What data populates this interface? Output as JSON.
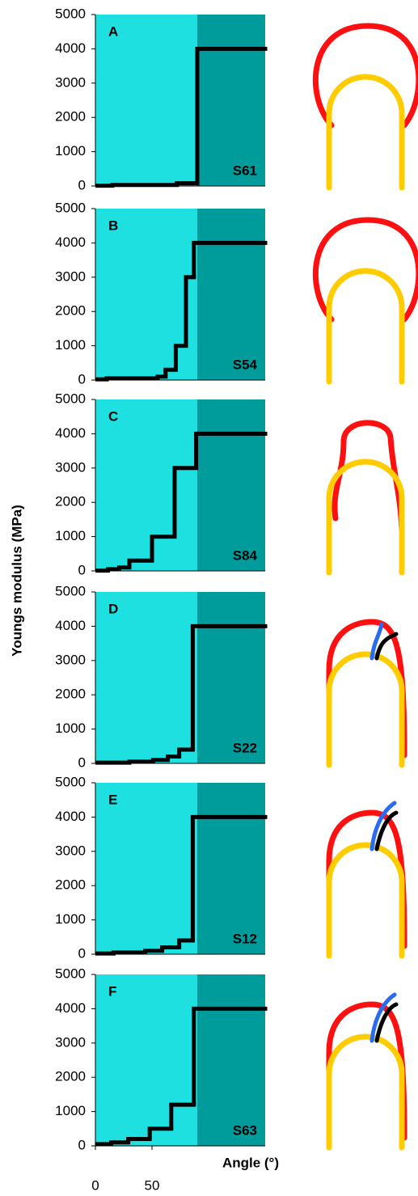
{
  "chart_data": [
    {
      "type": "line",
      "label": "A",
      "sample": "S61",
      "ylabel": "Youngs modulus (MPa)",
      "x": [
        0,
        15,
        72,
        90,
        150
      ],
      "values": [
        10,
        30,
        80,
        4000,
        4000
      ],
      "xlim": [
        0,
        150
      ],
      "ylim": [
        0,
        5000
      ],
      "yticks": [
        0,
        1000,
        2000,
        3000,
        4000,
        5000
      ],
      "highlight_x": [
        90,
        150
      ],
      "color": "#000000"
    },
    {
      "type": "line",
      "label": "B",
      "sample": "S54",
      "x": [
        0,
        10,
        55,
        62,
        71,
        80,
        87,
        150
      ],
      "values": [
        20,
        50,
        100,
        300,
        1000,
        3000,
        4000,
        4000
      ],
      "xlim": [
        0,
        150
      ],
      "ylim": [
        0,
        5000
      ],
      "yticks": [
        0,
        1000,
        2000,
        3000,
        4000,
        5000
      ],
      "highlight_x": [
        90,
        150
      ],
      "color": "#000000"
    },
    {
      "type": "line",
      "label": "C",
      "sample": "S84",
      "x": [
        0,
        11,
        21,
        30,
        50,
        70,
        89,
        150
      ],
      "values": [
        10,
        50,
        100,
        300,
        1000,
        3000,
        4000,
        4000
      ],
      "xlim": [
        0,
        150
      ],
      "ylim": [
        0,
        5000
      ],
      "yticks": [
        0,
        1000,
        2000,
        3000,
        4000,
        5000
      ],
      "highlight_x": [
        90,
        150
      ],
      "color": "#000000"
    },
    {
      "type": "line",
      "label": "D",
      "sample": "S22",
      "x": [
        0,
        30,
        51,
        64,
        74,
        86,
        150
      ],
      "values": [
        20,
        50,
        100,
        200,
        400,
        4000,
        4000
      ],
      "xlim": [
        0,
        150
      ],
      "ylim": [
        0,
        5000
      ],
      "yticks": [
        0,
        1000,
        2000,
        3000,
        4000,
        5000
      ],
      "highlight_x": [
        90,
        150
      ],
      "color": "#000000"
    },
    {
      "type": "line",
      "label": "E",
      "sample": "S12",
      "x": [
        0,
        16,
        44,
        59,
        74,
        86,
        150
      ],
      "values": [
        20,
        50,
        100,
        200,
        400,
        4000,
        4000
      ],
      "xlim": [
        0,
        150
      ],
      "ylim": [
        0,
        5000
      ],
      "yticks": [
        0,
        1000,
        2000,
        3000,
        4000,
        5000
      ],
      "highlight_x": [
        90,
        150
      ],
      "color": "#000000"
    },
    {
      "type": "line",
      "label": "F",
      "sample": "S63",
      "xlabel": "Angle (°)",
      "x": [
        0,
        14,
        29,
        48,
        67,
        87,
        150
      ],
      "values": [
        50,
        100,
        200,
        500,
        1200,
        4000,
        4000
      ],
      "xlim": [
        0,
        150
      ],
      "xticks": [
        0,
        50
      ],
      "ylim": [
        0,
        5000
      ],
      "yticks": [
        0,
        1000,
        2000,
        3000,
        4000,
        5000
      ],
      "highlight_x": [
        90,
        150
      ],
      "color": "#000000"
    }
  ]
}
